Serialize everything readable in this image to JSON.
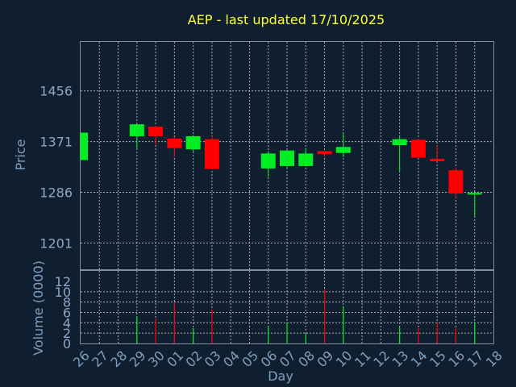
{
  "chart_data": {
    "type": "candlestick",
    "title": "AEP - last updated 17/10/2025",
    "xlabel": "Day",
    "price_panel": {
      "ylabel": "Price",
      "yticks": [
        1201,
        1286,
        1371,
        1456
      ],
      "ylim": [
        1157,
        1538
      ]
    },
    "volume_panel": {
      "ylabel": "Volume (0000)",
      "yticks": [
        0,
        2,
        4,
        6,
        8,
        10,
        12
      ],
      "ylim": [
        0,
        12
      ]
    },
    "x_ticks": [
      "26",
      "27",
      "28",
      "29",
      "30",
      "01",
      "02",
      "03",
      "04",
      "05",
      "06",
      "07",
      "08",
      "09",
      "10",
      "11",
      "12",
      "13",
      "14",
      "15",
      "16",
      "17",
      "18"
    ],
    "colors": {
      "up": "#00ee22",
      "down": "#ff0000",
      "background": "#0f1f2f",
      "title": "#ffff33"
    },
    "candles": [
      {
        "day": "26",
        "open": 1340,
        "high": 1386,
        "low": 1340,
        "close": 1386,
        "volume": 0
      },
      {
        "day": "29",
        "open": 1380,
        "high": 1400,
        "low": 1360,
        "close": 1400,
        "volume": 5.2
      },
      {
        "day": "30",
        "open": 1396,
        "high": 1398,
        "low": 1365,
        "close": 1380,
        "volume": 4.8
      },
      {
        "day": "01",
        "open": 1376,
        "high": 1378,
        "low": 1345,
        "close": 1360,
        "volume": 7.9
      },
      {
        "day": "02",
        "open": 1358,
        "high": 1382,
        "low": 1354,
        "close": 1380,
        "volume": 3.0
      },
      {
        "day": "03",
        "open": 1375,
        "high": 1380,
        "low": 1325,
        "close": 1325,
        "volume": 6.6
      },
      {
        "day": "06",
        "open": 1326,
        "high": 1355,
        "low": 1312,
        "close": 1351,
        "volume": 3.2
      },
      {
        "day": "07",
        "open": 1330,
        "high": 1357,
        "low": 1325,
        "close": 1356,
        "volume": 4.1
      },
      {
        "day": "08",
        "open": 1330,
        "high": 1360,
        "low": 1329,
        "close": 1351,
        "volume": 1.9
      },
      {
        "day": "09",
        "open": 1355,
        "high": 1356,
        "low": 1345,
        "close": 1350,
        "volume": 10.5
      },
      {
        "day": "10",
        "open": 1352,
        "high": 1385,
        "low": 1345,
        "close": 1362,
        "volume": 7.2
      },
      {
        "day": "13",
        "open": 1365,
        "high": 1380,
        "low": 1320,
        "close": 1375,
        "volume": 3.1
      },
      {
        "day": "14",
        "open": 1374,
        "high": 1376,
        "low": 1343,
        "close": 1344,
        "volume": 3.0
      },
      {
        "day": "15",
        "open": 1342,
        "high": 1365,
        "low": 1337,
        "close": 1338,
        "volume": 4.0
      },
      {
        "day": "16",
        "open": 1323,
        "high": 1328,
        "low": 1277,
        "close": 1284,
        "volume": 3.0
      },
      {
        "day": "17",
        "open": 1283,
        "high": 1285,
        "low": 1245,
        "close": 1285,
        "volume": 4.2
      }
    ]
  }
}
